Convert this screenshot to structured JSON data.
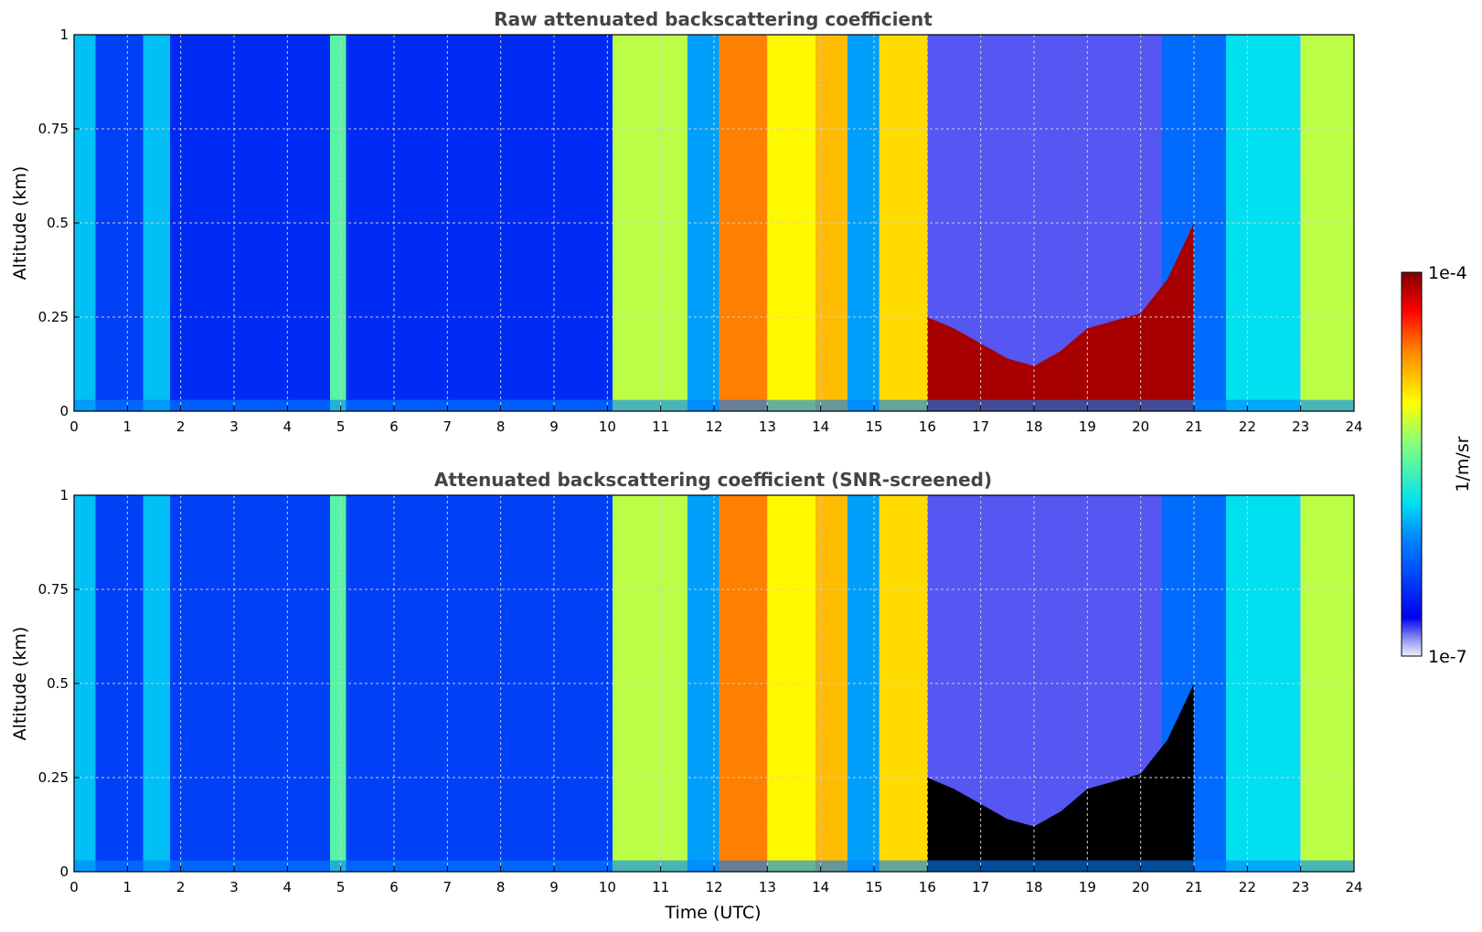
{
  "chart_data": [
    {
      "type": "heatmap",
      "title": "Raw attenuated backscattering coefficient",
      "xlabel": "",
      "ylabel": "Altitude (km)",
      "xlim": [
        0,
        24
      ],
      "ylim": [
        0,
        1
      ],
      "x_ticks": [
        "0",
        "1",
        "2",
        "3",
        "4",
        "5",
        "6",
        "7",
        "8",
        "9",
        "10",
        "11",
        "12",
        "13",
        "14",
        "15",
        "16",
        "17",
        "18",
        "19",
        "20",
        "21",
        "22",
        "23",
        "24"
      ],
      "y_ticks": [
        "0",
        "0.25",
        "0.5",
        "0.75",
        "1"
      ],
      "grid": true,
      "colorscale": "jet (log10)",
      "column_log10_backscatter": [
        {
          "time_start": 0.0,
          "time_end": 0.4,
          "log10_value": -5.9
        },
        {
          "time_start": 0.4,
          "time_end": 1.3,
          "log10_value": -6.4
        },
        {
          "time_start": 1.3,
          "time_end": 1.8,
          "log10_value": -5.9
        },
        {
          "time_start": 1.8,
          "time_end": 4.8,
          "log10_value": -6.5
        },
        {
          "time_start": 4.8,
          "time_end": 5.1,
          "log10_value": -5.5
        },
        {
          "time_start": 5.1,
          "time_end": 10.1,
          "log10_value": -6.5
        },
        {
          "time_start": 10.1,
          "time_end": 11.5,
          "log10_value": -5.2
        },
        {
          "time_start": 11.5,
          "time_end": 12.1,
          "log10_value": -6.0
        },
        {
          "time_start": 12.1,
          "time_end": 13.0,
          "log10_value": -4.6
        },
        {
          "time_start": 13.0,
          "time_end": 13.9,
          "log10_value": -5.0
        },
        {
          "time_start": 13.9,
          "time_end": 14.5,
          "log10_value": -4.8
        },
        {
          "time_start": 14.5,
          "time_end": 15.1,
          "log10_value": -6.0
        },
        {
          "time_start": 15.1,
          "time_end": 16.0,
          "log10_value": -4.9
        },
        {
          "time_start": 16.0,
          "time_end": 20.4,
          "log10_value": -6.8
        },
        {
          "time_start": 20.4,
          "time_end": 21.6,
          "log10_value": -6.2
        },
        {
          "time_start": 21.6,
          "time_end": 23.0,
          "log10_value": -5.8
        },
        {
          "time_start": 23.0,
          "time_end": 24.0,
          "log10_value": -5.2
        }
      ],
      "layer_top_km": [
        {
          "time": 16.0,
          "km": 0.25
        },
        {
          "time": 16.5,
          "km": 0.22
        },
        {
          "time": 17.0,
          "km": 0.18
        },
        {
          "time": 17.5,
          "km": 0.14
        },
        {
          "time": 18.0,
          "km": 0.12
        },
        {
          "time": 18.5,
          "km": 0.16
        },
        {
          "time": 19.0,
          "km": 0.22
        },
        {
          "time": 19.5,
          "km": 0.24
        },
        {
          "time": 20.0,
          "km": 0.26
        },
        {
          "time": 20.5,
          "km": 0.35
        },
        {
          "time": 21.0,
          "km": 0.5
        }
      ]
    },
    {
      "type": "heatmap",
      "title": "Attenuated backscattering coefficient (SNR-screened)",
      "xlabel": "Time (UTC)",
      "ylabel": "Altitude (km)",
      "xlim": [
        0,
        24
      ],
      "ylim": [
        0,
        1
      ],
      "x_ticks": [
        "0",
        "1",
        "2",
        "3",
        "4",
        "5",
        "6",
        "7",
        "8",
        "9",
        "10",
        "11",
        "12",
        "13",
        "14",
        "15",
        "16",
        "17",
        "18",
        "19",
        "20",
        "21",
        "22",
        "23",
        "24"
      ],
      "y_ticks": [
        "0",
        "0.25",
        "0.5",
        "0.75",
        "1"
      ],
      "grid": true,
      "colorscale": "jet (log10)",
      "column_log10_backscatter": [
        {
          "time_start": 0.0,
          "time_end": 0.4,
          "log10_value": -5.9
        },
        {
          "time_start": 0.4,
          "time_end": 1.3,
          "log10_value": -6.4
        },
        {
          "time_start": 1.3,
          "time_end": 1.8,
          "log10_value": -5.9
        },
        {
          "time_start": 1.8,
          "time_end": 4.8,
          "log10_value": -6.4
        },
        {
          "time_start": 4.8,
          "time_end": 5.1,
          "log10_value": -5.5
        },
        {
          "time_start": 5.1,
          "time_end": 10.1,
          "log10_value": -6.4
        },
        {
          "time_start": 10.1,
          "time_end": 11.5,
          "log10_value": -5.2
        },
        {
          "time_start": 11.5,
          "time_end": 12.1,
          "log10_value": -6.0
        },
        {
          "time_start": 12.1,
          "time_end": 13.0,
          "log10_value": -4.6
        },
        {
          "time_start": 13.0,
          "time_end": 13.9,
          "log10_value": -5.0
        },
        {
          "time_start": 13.9,
          "time_end": 14.5,
          "log10_value": -4.8
        },
        {
          "time_start": 14.5,
          "time_end": 15.1,
          "log10_value": -6.0
        },
        {
          "time_start": 15.1,
          "time_end": 16.0,
          "log10_value": -4.9
        },
        {
          "time_start": 16.0,
          "time_end": 20.4,
          "log10_value": -6.8
        },
        {
          "time_start": 20.4,
          "time_end": 21.6,
          "log10_value": -6.2
        },
        {
          "time_start": 21.6,
          "time_end": 23.0,
          "log10_value": -5.8
        },
        {
          "time_start": 23.0,
          "time_end": 24.0,
          "log10_value": -5.2
        }
      ],
      "layer_top_km": [
        {
          "time": 16.0,
          "km": 0.25
        },
        {
          "time": 16.5,
          "km": 0.22
        },
        {
          "time": 17.0,
          "km": 0.18
        },
        {
          "time": 17.5,
          "km": 0.14
        },
        {
          "time": 18.0,
          "km": 0.12
        },
        {
          "time": 18.5,
          "km": 0.16
        },
        {
          "time": 19.0,
          "km": 0.22
        },
        {
          "time": 19.5,
          "km": 0.24
        },
        {
          "time": 20.0,
          "km": 0.26
        },
        {
          "time": 20.5,
          "km": 0.35
        },
        {
          "time": 21.0,
          "km": 0.5
        }
      ]
    }
  ],
  "colorbar": {
    "label": "1/m/sr",
    "max_label": "1e-4",
    "min_label": "1e-7",
    "log10_range": [
      -7,
      -4
    ]
  }
}
